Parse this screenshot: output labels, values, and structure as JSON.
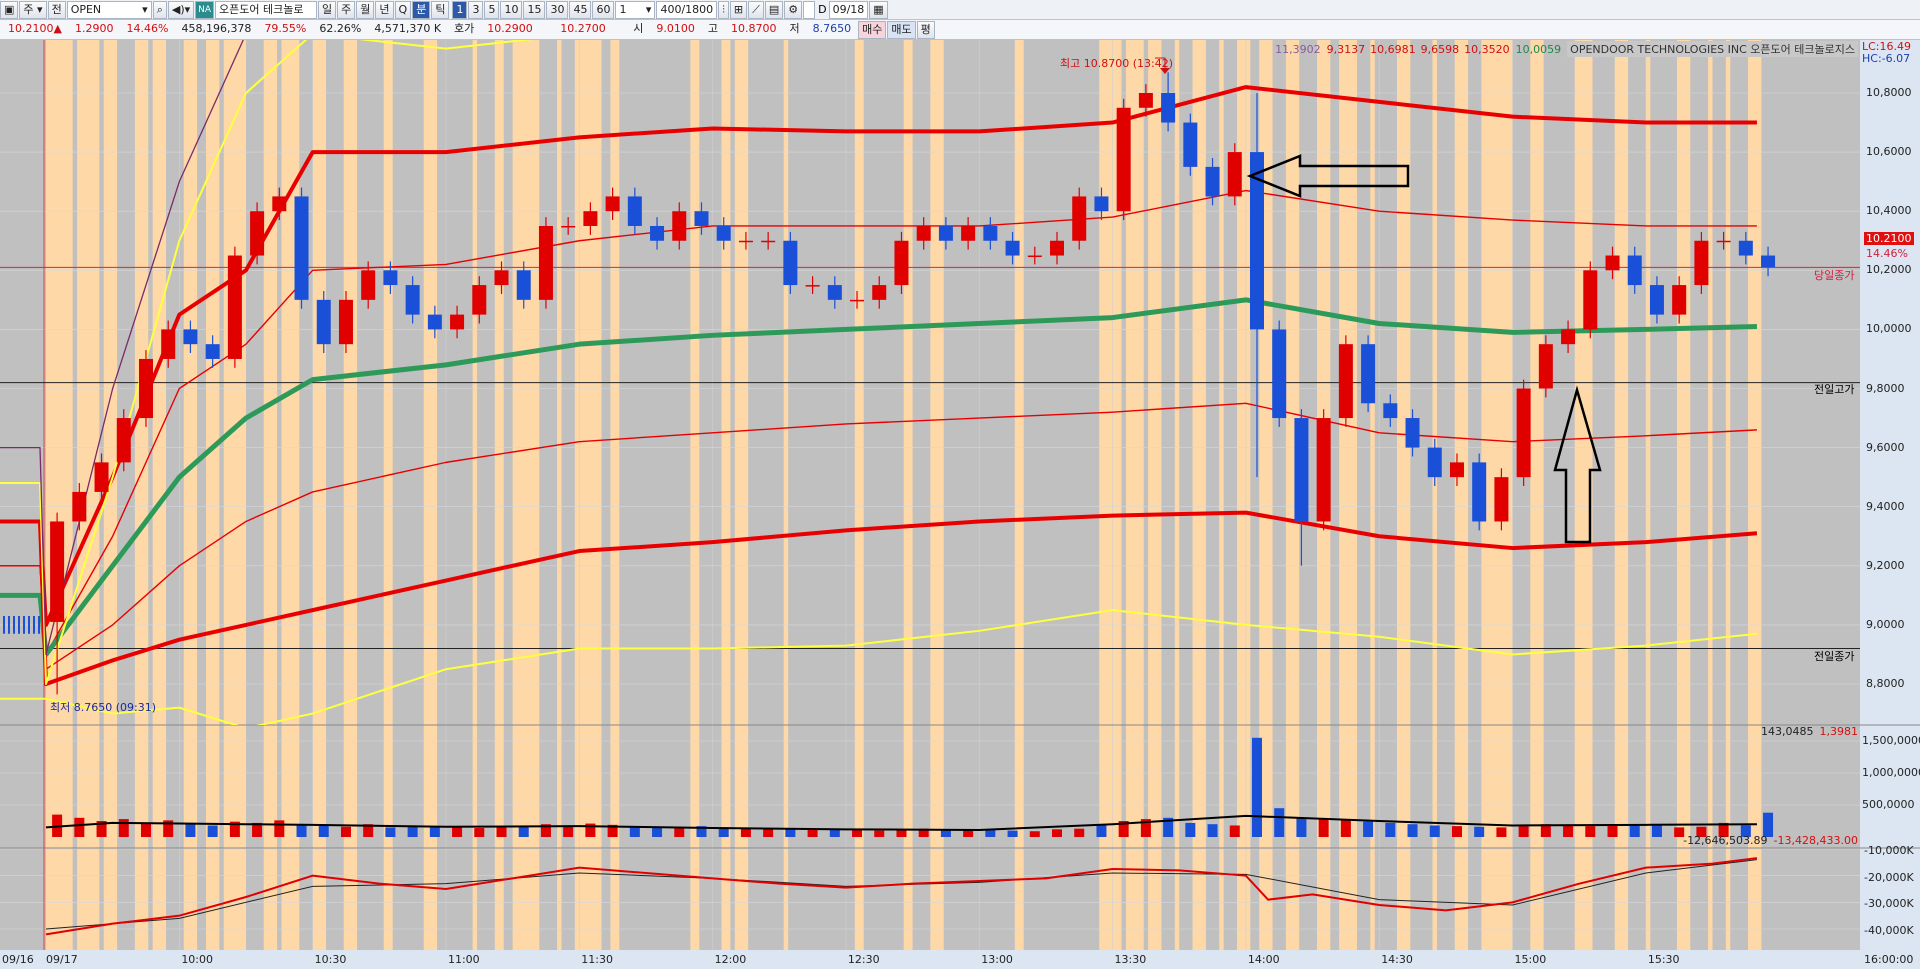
{
  "toolbar": {
    "period_select": "주",
    "prefix": "전",
    "symbol_code": "OPEN",
    "symbol_badge": "NA",
    "symbol_name": "오픈도어 테크놀로",
    "timeframes": [
      "일",
      "주",
      "월",
      "년",
      "Q",
      "분",
      "틱"
    ],
    "active_timeframe": "분",
    "intervals": [
      "1",
      "3",
      "5",
      "10",
      "15",
      "30",
      "45",
      "60"
    ],
    "active_interval": "1",
    "interval_select": "1",
    "count": "400/1800",
    "d_label": "D",
    "date": "09/18"
  },
  "quote": {
    "price": "10.2100▲",
    "change": "1.2900",
    "change_pct": "14.46%",
    "volume": "458,196,378",
    "ratio1": "79.55%",
    "ratio2": "62.26%",
    "amount": "4,571,370 K",
    "hoga_label": "호가",
    "ask": "10.2900",
    "bid": "10.2700",
    "open_label": "시",
    "open": "9.0100",
    "high_label": "고",
    "high": "10.8700",
    "low_label": "저",
    "low": "8.7650",
    "buy": "매수",
    "sell": "매도",
    "avg": "평"
  },
  "legend": {
    "v0": "11,3902",
    "red_values": [
      "9,3137",
      "10,6981",
      "9,6598",
      "10,3520"
    ],
    "green_value": "10,0059",
    "name": "OPENDOOR TECHNOLOGIES INC  오픈도어 테크놀로지스",
    "lc": "LC:16.49",
    "hc": "HC:-6.07"
  },
  "annotations": {
    "high": "최고 10.8700 (13:42)",
    "low": "최저 8.7650 (09:31)",
    "today_close": "당일종가",
    "prev_high": "전일고가",
    "prev_close": "전일종가",
    "last_price": "10.2100",
    "last_pct": "14.46%"
  },
  "volume_legend": {
    "v1": "143,0485",
    "v2": "1,3981"
  },
  "indicator_legend": {
    "v1": "-12,646,503.89",
    "v2": "-13,428,433.00"
  },
  "colors": {
    "up": "#e00000",
    "down": "#1a4fd8",
    "band": "#e80000",
    "vwap": "#2e9a5a",
    "yellow": "#ffff40",
    "purple": "#7a2a6a",
    "plot_bg": "#c0c0c0",
    "highlight": "#ffd8a8"
  },
  "chart_data": {
    "type": "candlestick",
    "price_axis": {
      "ticks": [
        "10,8000",
        "10,6000",
        "10,4000",
        "10,2000",
        "10,0000",
        "9,8000",
        "9,6000",
        "9,4000",
        "9,2000",
        "9,0000",
        "8,8000"
      ],
      "ylim": [
        8.65,
        10.99
      ]
    },
    "time_axis": {
      "labels": [
        "09/16",
        "09/17",
        "10:00",
        "10:30",
        "11:00",
        "11:30",
        "12:00",
        "12:30",
        "13:00",
        "13:30",
        "14:00",
        "14:30",
        "15:00",
        "15:30"
      ],
      "end_label": "16:00:00"
    },
    "bar_minutes": 5,
    "open": 9.01,
    "closes": [
      9.35,
      9.45,
      9.55,
      9.7,
      9.9,
      10.0,
      9.95,
      9.9,
      10.25,
      10.4,
      10.45,
      10.1,
      9.95,
      10.1,
      10.2,
      10.15,
      10.05,
      10.0,
      10.05,
      10.15,
      10.2,
      10.1,
      10.35,
      10.35,
      10.4,
      10.45,
      10.35,
      10.3,
      10.4,
      10.35,
      10.3,
      10.3,
      10.3,
      10.15,
      10.15,
      10.1,
      10.1,
      10.15,
      10.3,
      10.35,
      10.3,
      10.35,
      10.3,
      10.25,
      10.25,
      10.3,
      10.45,
      10.4,
      10.75,
      10.8,
      10.7,
      10.55,
      10.45,
      10.6,
      10.0,
      9.7,
      9.35,
      9.7,
      9.95,
      9.75,
      9.7,
      9.6,
      9.5,
      9.55,
      9.35,
      9.5,
      9.8,
      9.95,
      10.0,
      10.2,
      10.25,
      10.15,
      10.05,
      10.15,
      10.3,
      10.3,
      10.25,
      10.21
    ],
    "wick_overrides": [
      {
        "time": "09:30",
        "low": 8.765
      },
      {
        "time": "13:40",
        "high": 10.87
      },
      {
        "time": "14:00",
        "high": 10.8,
        "low": 9.5
      },
      {
        "time": "14:10",
        "low": 9.2
      }
    ],
    "band_times": [
      "09:30",
      "09:45",
      "10:00",
      "10:15",
      "10:30",
      "11:00",
      "11:30",
      "12:00",
      "12:30",
      "13:00",
      "13:30",
      "14:00",
      "14:30",
      "15:00",
      "15:30",
      "15:55"
    ],
    "lines": [
      {
        "style": "thick-red",
        "prev_day": 9.35,
        "values": [
          9.0,
          9.5,
          10.05,
          10.2,
          10.6,
          10.6,
          10.65,
          10.68,
          10.67,
          10.67,
          10.7,
          10.82,
          10.77,
          10.72,
          10.7,
          10.7
        ]
      },
      {
        "style": "thin-red",
        "prev_day": 9.2,
        "values": [
          8.9,
          9.3,
          9.8,
          9.95,
          10.2,
          10.22,
          10.3,
          10.35,
          10.35,
          10.35,
          10.38,
          10.47,
          10.4,
          10.37,
          10.35,
          10.35
        ]
      },
      {
        "style": "green",
        "prev_day": 9.1,
        "values": [
          8.9,
          9.2,
          9.5,
          9.7,
          9.83,
          9.88,
          9.95,
          9.98,
          10.0,
          10.02,
          10.04,
          10.1,
          10.02,
          9.99,
          10.0,
          10.01
        ]
      },
      {
        "style": "thin-red",
        "prev_day": 9.2,
        "values": [
          8.85,
          9.0,
          9.2,
          9.35,
          9.45,
          9.55,
          9.62,
          9.65,
          9.68,
          9.7,
          9.72,
          9.75,
          9.65,
          9.62,
          9.64,
          9.66
        ]
      },
      {
        "style": "thick-red",
        "prev_day": 9.35,
        "values": [
          8.8,
          8.88,
          8.95,
          9.0,
          9.05,
          9.15,
          9.25,
          9.28,
          9.32,
          9.35,
          9.37,
          9.38,
          9.3,
          9.26,
          9.28,
          9.31
        ]
      },
      {
        "style": "yellow",
        "prev_day": 9.48,
        "values": [
          8.8,
          9.5,
          10.3,
          10.8,
          11.0,
          10.95,
          11.0,
          11.1,
          11.2,
          11.25,
          11.3,
          11.35,
          11.38,
          11.39,
          11.39,
          11.39
        ]
      },
      {
        "style": "yellow",
        "prev_day": 8.75,
        "values": [
          8.75,
          8.7,
          8.72,
          8.65,
          8.7,
          8.85,
          8.92,
          8.92,
          8.93,
          8.98,
          9.05,
          9.0,
          8.96,
          8.9,
          8.93,
          8.97
        ]
      },
      {
        "style": "purple",
        "prev_day": 9.6,
        "values": [
          8.9,
          9.8,
          10.5,
          11.0,
          11.5,
          12,
          12,
          12,
          12,
          12,
          12,
          12,
          12,
          12,
          12,
          12
        ]
      }
    ],
    "reference_lines": {
      "today_close": 10.21,
      "prev_high": 9.82,
      "prev_close": 8.92
    },
    "highlight_ranges": [
      [
        "09:30",
        "09:36"
      ],
      [
        "09:37",
        "09:42"
      ],
      [
        "09:43",
        "09:46"
      ],
      [
        "09:50",
        "09:53"
      ],
      [
        "09:54",
        "09:57"
      ],
      [
        "10:01",
        "10:04"
      ],
      [
        "10:06",
        "10:09"
      ],
      [
        "10:10",
        "10:15"
      ],
      [
        "10:19",
        "10:22"
      ],
      [
        "10:23",
        "10:27"
      ],
      [
        "10:30",
        "10:33"
      ],
      [
        "10:37",
        "10:40"
      ],
      [
        "10:46",
        "10:48"
      ],
      [
        "10:55",
        "10:58"
      ],
      [
        "11:06",
        "11:07"
      ],
      [
        "11:11",
        "11:13"
      ],
      [
        "11:15",
        "11:21"
      ],
      [
        "11:25",
        "11:26"
      ],
      [
        "11:29",
        "11:35"
      ],
      [
        "11:37",
        "11:39"
      ],
      [
        "11:55",
        "11:57"
      ],
      [
        "12:02",
        "12:04"
      ],
      [
        "12:05",
        "12:08"
      ],
      [
        "12:16",
        "12:17"
      ],
      [
        "12:32",
        "12:34"
      ],
      [
        "12:43",
        "12:45"
      ],
      [
        "12:49",
        "12:52"
      ],
      [
        "13:08",
        "13:10"
      ],
      [
        "13:27",
        "13:32"
      ],
      [
        "13:33",
        "13:37"
      ],
      [
        "13:38",
        "13:41"
      ],
      [
        "13:44",
        "13:45"
      ],
      [
        "13:48",
        "13:51"
      ],
      [
        "13:54",
        "13:55"
      ],
      [
        "13:58",
        "14:01"
      ],
      [
        "14:03",
        "14:06"
      ],
      [
        "14:09",
        "14:12"
      ],
      [
        "14:16",
        "14:19"
      ],
      [
        "14:21",
        "14:25"
      ],
      [
        "14:28",
        "14:29"
      ],
      [
        "14:34",
        "14:37"
      ],
      [
        "14:42",
        "14:43"
      ],
      [
        "14:47",
        "14:50"
      ],
      [
        "14:53",
        "15:00"
      ],
      [
        "15:04",
        "15:07"
      ],
      [
        "15:14",
        "15:18"
      ],
      [
        "15:23",
        "15:26"
      ],
      [
        "15:30",
        "15:31"
      ],
      [
        "15:37",
        "15:40"
      ],
      [
        "15:44",
        "15:45"
      ],
      [
        "15:48",
        "15:49"
      ],
      [
        "15:53",
        "15:56"
      ]
    ],
    "volume": {
      "ticks": [
        "1,500,0000",
        "1,000,0000",
        "500,0000"
      ],
      "values": [
        350000,
        300000,
        250000,
        280000,
        220000,
        260000,
        200000,
        180000,
        240000,
        220000,
        260000,
        200000,
        180000,
        160000,
        200000,
        150000,
        180000,
        160000,
        150000,
        140000,
        170000,
        160000,
        200000,
        180000,
        210000,
        190000,
        160000,
        150000,
        140000,
        170000,
        150000,
        130000,
        120000,
        140000,
        120000,
        110000,
        120000,
        100000,
        110000,
        130000,
        120000,
        100000,
        110000,
        100000,
        90000,
        120000,
        130000,
        200000,
        250000,
        280000,
        300000,
        220000,
        200000,
        180000,
        1550000,
        450000,
        300000,
        280000,
        260000,
        240000,
        220000,
        200000,
        180000,
        170000,
        160000,
        150000,
        180000,
        200000,
        190000,
        170000,
        200000,
        180000,
        190000,
        150000,
        160000,
        220000,
        180000,
        380000
      ],
      "ma": [
        150000,
        220000,
        210000,
        200000,
        190000,
        160000,
        170000,
        140000,
        120000,
        110000,
        200000,
        330000,
        250000,
        180000,
        190000,
        200000
      ]
    },
    "indicator": {
      "ticks": [
        "-10,000K",
        "-20,000K",
        "-30,000K",
        "-40,000K"
      ],
      "unit": "K",
      "line": [
        [
          "09:30",
          -42000
        ],
        [
          "09:45",
          -38000
        ],
        [
          "10:00",
          -35000
        ],
        [
          "10:15",
          -28000
        ],
        [
          "10:30",
          -20000
        ],
        [
          "10:45",
          -23000
        ],
        [
          "11:00",
          -25000
        ],
        [
          "11:15",
          -21000
        ],
        [
          "11:30",
          -17000
        ],
        [
          "11:45",
          -19000
        ],
        [
          "12:00",
          -21000
        ],
        [
          "12:15",
          -23000
        ],
        [
          "12:30",
          -24500
        ],
        [
          "12:45",
          -23000
        ],
        [
          "13:00",
          -22000
        ],
        [
          "13:15",
          -21000
        ],
        [
          "13:30",
          -17500
        ],
        [
          "13:45",
          -18000
        ],
        [
          "14:00",
          -20000
        ],
        [
          "14:05",
          -29000
        ],
        [
          "14:15",
          -27000
        ],
        [
          "14:30",
          -31000
        ],
        [
          "14:45",
          -33000
        ],
        [
          "15:00",
          -30000
        ],
        [
          "15:15",
          -23000
        ],
        [
          "15:30",
          -17000
        ],
        [
          "15:45",
          -15500
        ],
        [
          "15:55",
          -13400
        ]
      ],
      "signal": [
        [
          "09:30",
          -40000
        ],
        [
          "10:00",
          -36000
        ],
        [
          "10:30",
          -24000
        ],
        [
          "11:00",
          -23000
        ],
        [
          "11:30",
          -19000
        ],
        [
          "12:00",
          -21000
        ],
        [
          "12:30",
          -24000
        ],
        [
          "13:00",
          -22500
        ],
        [
          "13:30",
          -19000
        ],
        [
          "14:00",
          -19500
        ],
        [
          "14:30",
          -29000
        ],
        [
          "15:00",
          -31000
        ],
        [
          "15:30",
          -19000
        ],
        [
          "15:55",
          -14000
        ]
      ]
    }
  }
}
